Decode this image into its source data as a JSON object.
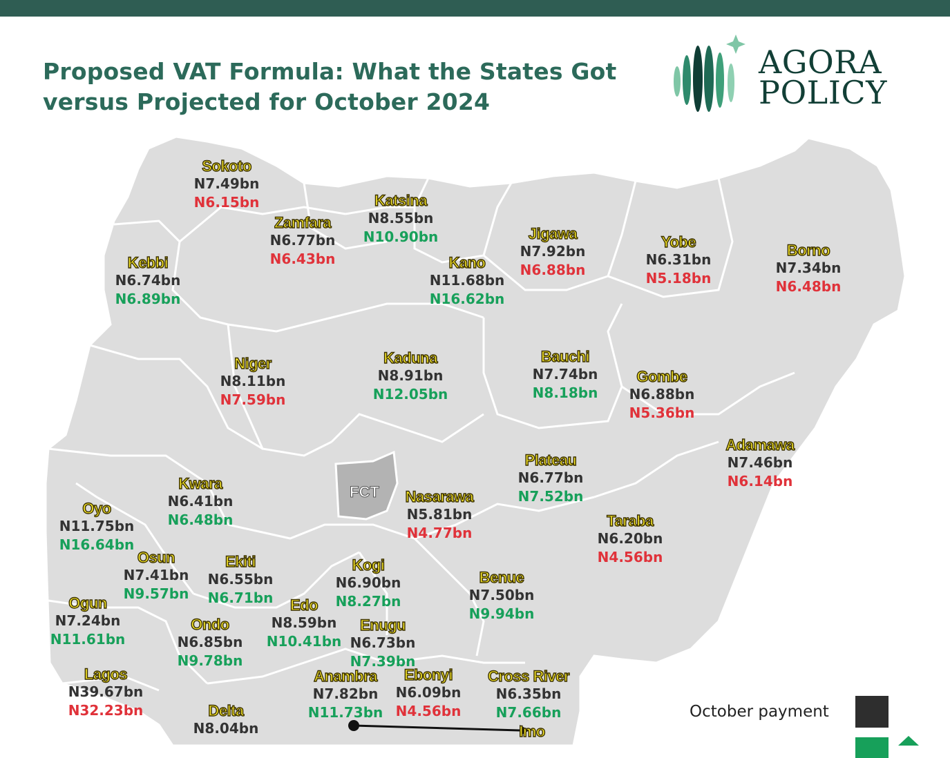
{
  "title_line1": "Proposed VAT Formula: What the States Got",
  "title_line2": "versus Projected for October 2024",
  "logo": {
    "line1": "AGORA",
    "line2": "POLICY"
  },
  "fct_label": "FCT",
  "legend": {
    "october_payment": "October payment"
  },
  "colors": {
    "paid": "#333333",
    "higher": "#17a05a",
    "lower": "#e0323a",
    "state_name": "#f4e42a",
    "map": "#dcdcdc",
    "brand": "#2f5d53"
  },
  "states": [
    {
      "name": "Sokoto",
      "paid": "N7.49bn",
      "projected": "N6.15bn",
      "trend": "down"
    },
    {
      "name": "Zamfara",
      "paid": "N6.77bn",
      "projected": "N6.43bn",
      "trend": "down"
    },
    {
      "name": "Katsina",
      "paid": "N8.55bn",
      "projected": "N10.90bn",
      "trend": "up"
    },
    {
      "name": "Jigawa",
      "paid": "N7.92bn",
      "projected": "N6.88bn",
      "trend": "down"
    },
    {
      "name": "Kano",
      "paid": "N11.68bn",
      "projected": "N16.62bn",
      "trend": "up"
    },
    {
      "name": "Yobe",
      "paid": "N6.31bn",
      "projected": "N5.18bn",
      "trend": "down"
    },
    {
      "name": "Borno",
      "paid": "N7.34bn",
      "projected": "N6.48bn",
      "trend": "down"
    },
    {
      "name": "Kebbi",
      "paid": "N6.74bn",
      "projected": "N6.89bn",
      "trend": "up"
    },
    {
      "name": "Niger",
      "paid": "N8.11bn",
      "projected": "N7.59bn",
      "trend": "down"
    },
    {
      "name": "Kaduna",
      "paid": "N8.91bn",
      "projected": "N12.05bn",
      "trend": "up"
    },
    {
      "name": "Bauchi",
      "paid": "N7.74bn",
      "projected": "N8.18bn",
      "trend": "up"
    },
    {
      "name": "Gombe",
      "paid": "N6.88bn",
      "projected": "N5.36bn",
      "trend": "down"
    },
    {
      "name": "Adamawa",
      "paid": "N7.46bn",
      "projected": "N6.14bn",
      "trend": "down"
    },
    {
      "name": "Plateau",
      "paid": "N6.77bn",
      "projected": "N7.52bn",
      "trend": "up"
    },
    {
      "name": "Kwara",
      "paid": "N6.41bn",
      "projected": "N6.48bn",
      "trend": "up"
    },
    {
      "name": "Nasarawa",
      "paid": "N5.81bn",
      "projected": "N4.77bn",
      "trend": "down"
    },
    {
      "name": "Oyo",
      "paid": "N11.75bn",
      "projected": "N16.64bn",
      "trend": "up"
    },
    {
      "name": "Taraba",
      "paid": "N6.20bn",
      "projected": "N4.56bn",
      "trend": "down"
    },
    {
      "name": "Osun",
      "paid": "N7.41bn",
      "projected": "N9.57bn",
      "trend": "up"
    },
    {
      "name": "Ekiti",
      "paid": "N6.55bn",
      "projected": "N6.71bn",
      "trend": "up"
    },
    {
      "name": "Kogi",
      "paid": "N6.90bn",
      "projected": "N8.27bn",
      "trend": "up"
    },
    {
      "name": "Benue",
      "paid": "N7.50bn",
      "projected": "N9.94bn",
      "trend": "up"
    },
    {
      "name": "Ogun",
      "paid": "N7.24bn",
      "projected": "N11.61bn",
      "trend": "up"
    },
    {
      "name": "Edo",
      "paid": "N8.59bn",
      "projected": "N10.41bn",
      "trend": "up"
    },
    {
      "name": "Enugu",
      "paid": "N6.73bn",
      "projected": "N7.39bn",
      "trend": "up"
    },
    {
      "name": "Ondo",
      "paid": "N6.85bn",
      "projected": "N9.78bn",
      "trend": "up"
    },
    {
      "name": "Lagos",
      "paid": "N39.67bn",
      "projected": "N32.23bn",
      "trend": "down"
    },
    {
      "name": "Anambra",
      "paid": "N7.82bn",
      "projected": "N11.73bn",
      "trend": "up"
    },
    {
      "name": "Ebonyi",
      "paid": "N6.09bn",
      "projected": "N4.56bn",
      "trend": "down"
    },
    {
      "name": "Cross River",
      "paid": "N6.35bn",
      "projected": "N7.66bn",
      "trend": "up"
    },
    {
      "name": "Delta",
      "paid": "N8.04bn",
      "projected": "",
      "trend": "up"
    },
    {
      "name": "Imo",
      "paid": "",
      "projected": "",
      "trend": "up"
    }
  ]
}
